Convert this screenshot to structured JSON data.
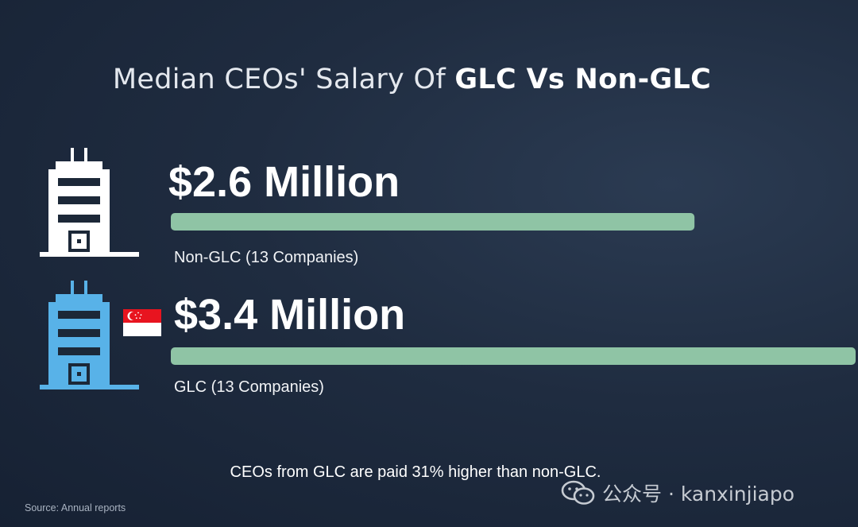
{
  "title": {
    "prefix": "Median CEOs' Salary Of ",
    "strong": "GLC Vs Non-GLC"
  },
  "chart_data": {
    "type": "bar",
    "orientation": "horizontal",
    "categories": [
      "Non-GLC (13 Companies)",
      "GLC (13 Companies)"
    ],
    "values": [
      2.6,
      3.4
    ],
    "value_labels": [
      "$2.6 Million",
      "$3.4 Million"
    ],
    "unit": "Million",
    "xlim": [
      0,
      3.4
    ],
    "grid": false,
    "bar_color": "#8fc4a5",
    "icon_colors": [
      "#ffffff",
      "#58b2e8"
    ],
    "icons": [
      "office-building-icon",
      "office-building-icon"
    ],
    "flag_icon": "singapore-flag-icon"
  },
  "note": "CEOs from GLC are paid 31% higher than non-GLC.",
  "source": "Source: Annual reports",
  "watermark": {
    "text": "公众号 · kanxinjiapo",
    "icon": "wechat-icon"
  }
}
